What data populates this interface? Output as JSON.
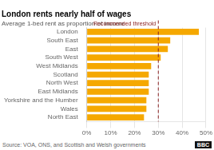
{
  "chart_data": {
    "type": "bar",
    "orientation": "horizontal",
    "title": "London rents nearly half of wages",
    "subtitle": "Average 1-bed rent as proportion of income",
    "source": "Source: VOA, ONS, and Scottish and Welsh governments",
    "logo": "BBC",
    "categories": [
      "North East",
      "Wales",
      "Yorkshire and the Humber",
      "East Midlands",
      "North West",
      "Scotland",
      "West Midlands",
      "South West",
      "East",
      "South East",
      "London"
    ],
    "values": [
      24,
      25,
      25,
      26,
      26,
      26,
      27,
      31,
      34,
      35,
      47
    ],
    "color": "#f5a800",
    "xlim": [
      0,
      50
    ],
    "xticks": [
      {
        "value": 0,
        "label": "0%"
      },
      {
        "value": 10,
        "label": "10%"
      },
      {
        "value": 20,
        "label": "20%"
      },
      {
        "value": 30,
        "label": "30%"
      },
      {
        "value": 40,
        "label": "40%"
      },
      {
        "value": 50,
        "label": "50%"
      }
    ],
    "grid": true,
    "annotations": [
      {
        "text": "Recommended threshold",
        "x": 30,
        "color": "#8b2020",
        "line_style": "dashed"
      }
    ]
  }
}
